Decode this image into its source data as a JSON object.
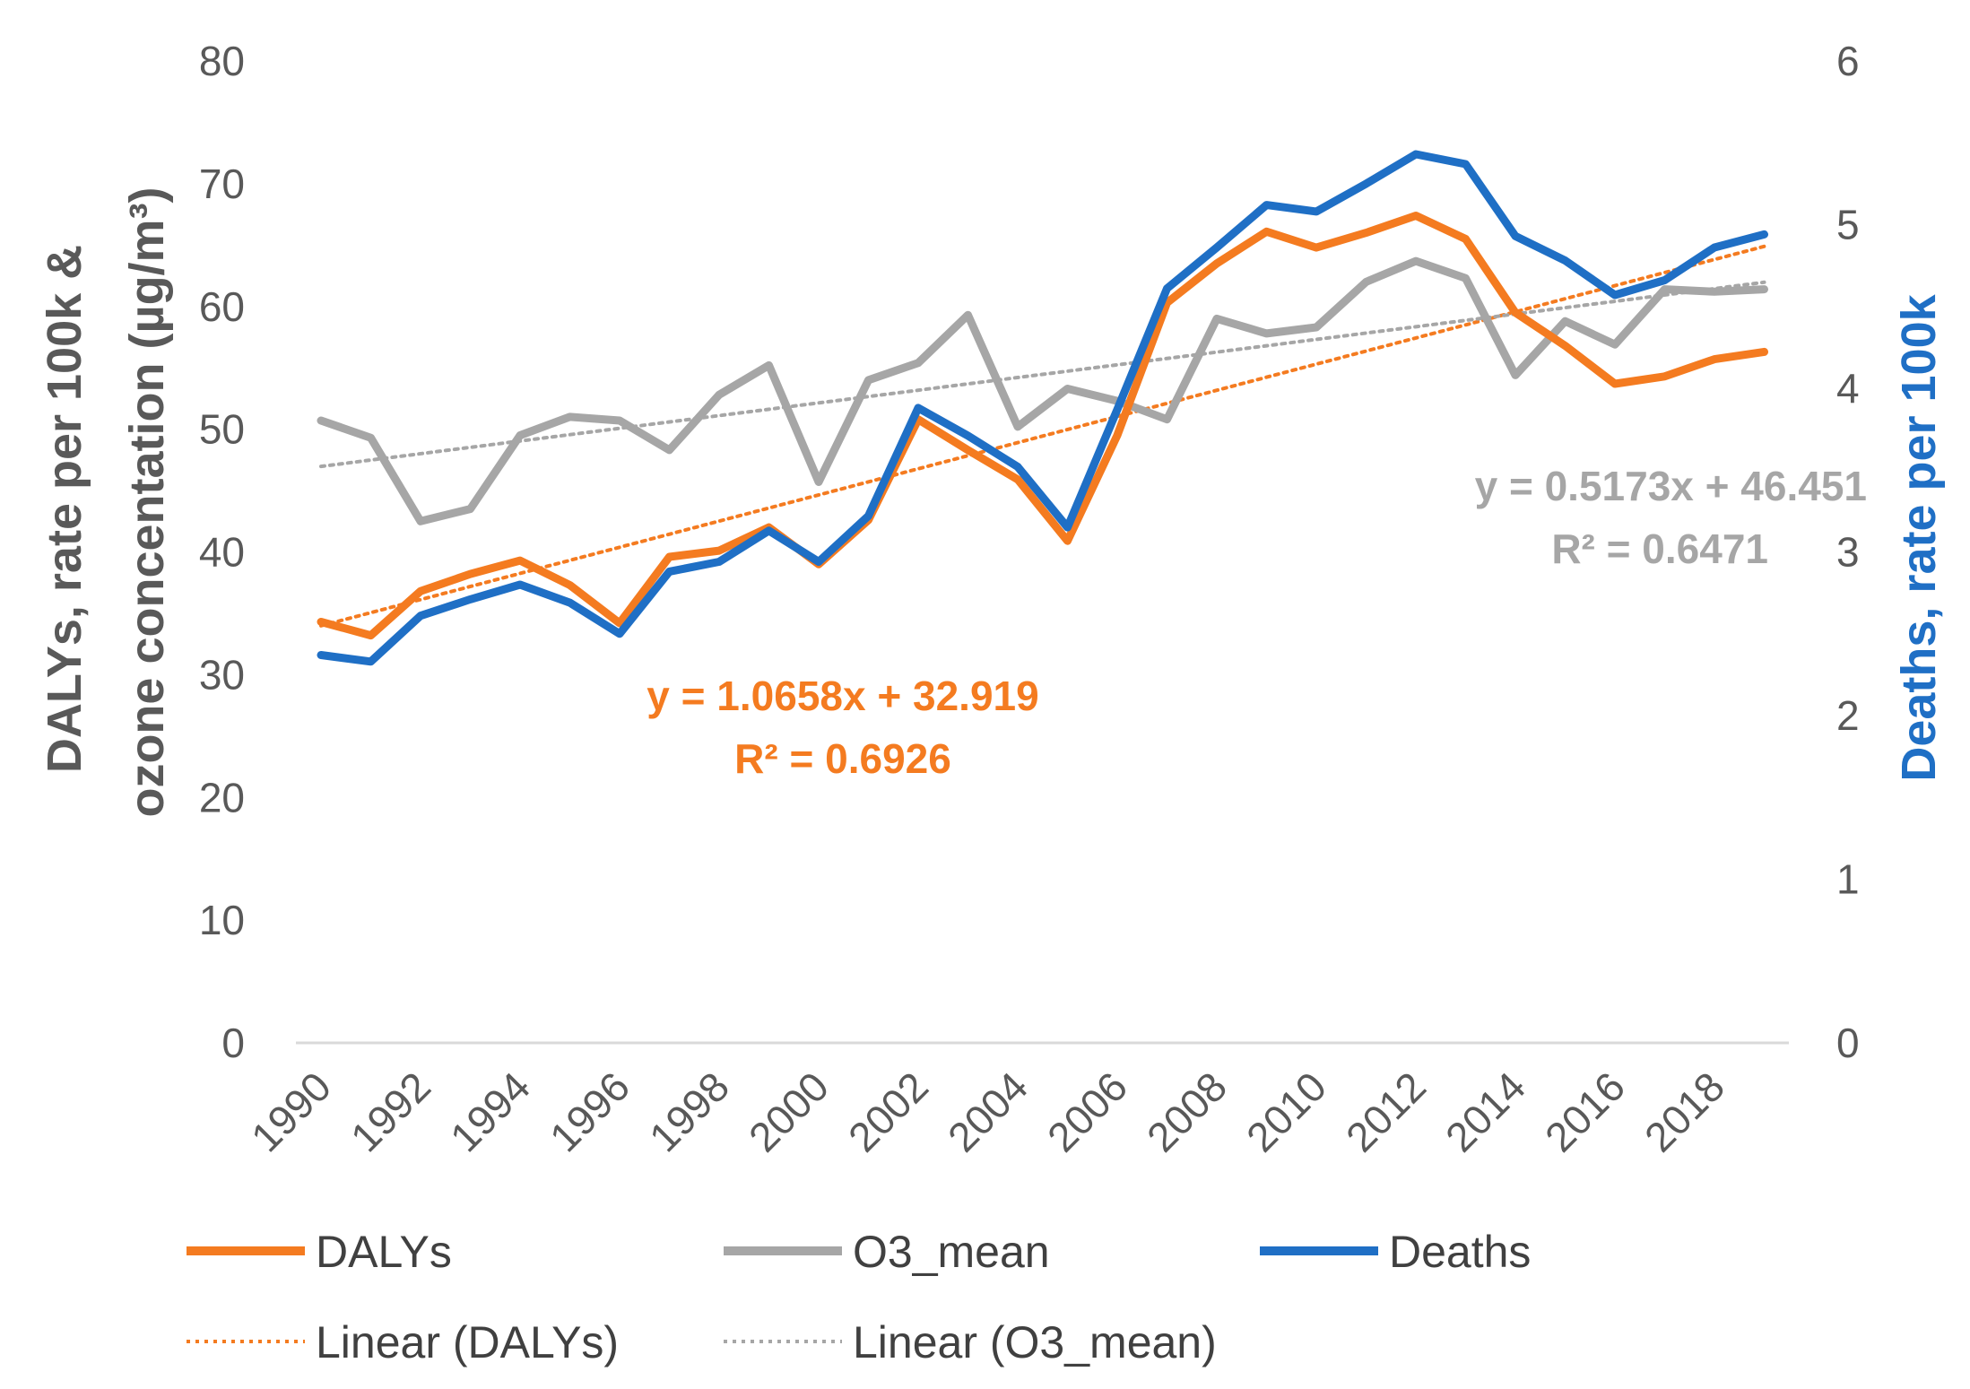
{
  "chart_data": {
    "type": "line",
    "x": [
      1990,
      1991,
      1992,
      1993,
      1994,
      1995,
      1996,
      1997,
      1998,
      1999,
      2000,
      2001,
      2002,
      2003,
      2004,
      2005,
      2006,
      2007,
      2008,
      2009,
      2010,
      2011,
      2012,
      2013,
      2014,
      2015,
      2016,
      2017,
      2018,
      2019
    ],
    "x_tick_labels": [
      "1990",
      "1992",
      "1994",
      "1996",
      "1998",
      "2000",
      "2002",
      "2004",
      "2006",
      "2008",
      "2010",
      "2012",
      "2014",
      "2016",
      "2018"
    ],
    "left_axis": {
      "label": "DALYs, rate per 100k & ozone concentation (µg/m³)",
      "label_line1": "DALYs, rate per 100k &",
      "label_line2": "ozone concentation (µg/m³)",
      "ylim": [
        0,
        80
      ],
      "ticks": [
        "0",
        "10",
        "20",
        "30",
        "40",
        "50",
        "60",
        "70",
        "80"
      ]
    },
    "right_axis": {
      "label": "Deaths, rate per 100k",
      "ylim": [
        0,
        6
      ],
      "ticks": [
        "0",
        "1",
        "2",
        "3",
        "4",
        "5",
        "6"
      ],
      "color": "#1f6fc5"
    },
    "series": [
      {
        "name": "DALYs",
        "axis": "left",
        "color": "#f47b20",
        "values": [
          34.3,
          33.2,
          36.8,
          38.2,
          39.3,
          37.3,
          34.2,
          39.6,
          40.1,
          42.0,
          39.0,
          42.6,
          50.8,
          48.3,
          45.9,
          40.9,
          49.5,
          60.3,
          63.5,
          66.1,
          64.8,
          66.0,
          67.4,
          65.5,
          59.5,
          56.8,
          53.7,
          54.3,
          55.7,
          56.3
        ]
      },
      {
        "name": "O3_mean",
        "axis": "left",
        "color": "#a6a6a6",
        "values": [
          50.7,
          49.3,
          42.5,
          43.5,
          49.5,
          51.0,
          50.7,
          48.3,
          52.8,
          55.2,
          45.7,
          54.0,
          55.4,
          59.3,
          50.2,
          53.3,
          52.3,
          50.8,
          59.0,
          57.8,
          58.3,
          62.0,
          63.7,
          62.3,
          54.4,
          58.8,
          56.9,
          61.4,
          61.2,
          61.4
        ]
      },
      {
        "name": "Deaths",
        "axis": "right",
        "color": "#1f6fc5",
        "values": [
          2.37,
          2.33,
          2.61,
          2.71,
          2.8,
          2.69,
          2.5,
          2.88,
          2.94,
          3.13,
          2.94,
          3.22,
          3.88,
          3.71,
          3.52,
          3.15,
          3.87,
          4.61,
          4.86,
          5.12,
          5.08,
          5.25,
          5.43,
          5.37,
          4.93,
          4.78,
          4.57,
          4.66,
          4.86,
          4.94
        ]
      }
    ],
    "trendlines": [
      {
        "name": "Linear (DALYs)",
        "series": "DALYs",
        "slope": 1.0658,
        "intercept": 32.919,
        "color": "#f47b20",
        "equation": "y = 1.0658x + 32.919",
        "r2": "R² = 0.6926"
      },
      {
        "name": "Linear (O3_mean)",
        "series": "O3_mean",
        "slope": 0.5173,
        "intercept": 46.451,
        "color": "#a6a6a6",
        "equation": "y = 0.5173x + 46.451",
        "r2": "R² = 0.6471"
      }
    ],
    "legend": {
      "placement": "bottom",
      "items": [
        {
          "label": "DALYs",
          "style": "solid",
          "color": "#f47b20"
        },
        {
          "label": "O3_mean",
          "style": "solid",
          "color": "#a6a6a6"
        },
        {
          "label": "Deaths",
          "style": "solid",
          "color": "#1f6fc5"
        },
        {
          "label": "Linear (DALYs)",
          "style": "dotted",
          "color": "#f47b20"
        },
        {
          "label": "Linear (O3_mean)",
          "style": "dotted",
          "color": "#a6a6a6"
        }
      ]
    }
  }
}
